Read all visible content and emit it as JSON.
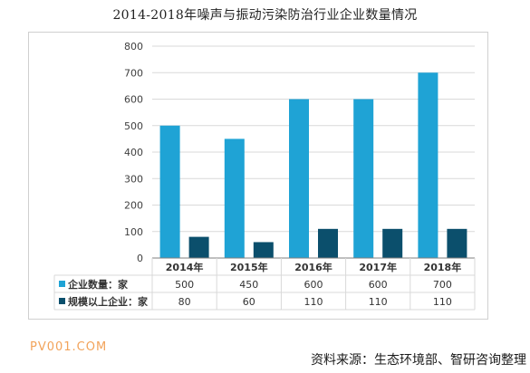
{
  "title": "2014-2018年噪声与振动污染防治行业企业数量情况",
  "watermark": "PV001.COM",
  "source": "资料来源：生态环境部、智研咨询整理",
  "colors": {
    "series1": "#1fa3d5",
    "series2": "#0b4f6c",
    "grid": "#d9d9d9",
    "axis": "#7f7f7f"
  },
  "chart_data": {
    "type": "bar",
    "categories": [
      "2014年",
      "2015年",
      "2016年",
      "2017年",
      "2018年"
    ],
    "series": [
      {
        "name": "企业数量：家",
        "values": [
          500,
          450,
          600,
          600,
          700
        ]
      },
      {
        "name": "规模以上企业：家",
        "values": [
          80,
          60,
          110,
          110,
          110
        ]
      }
    ],
    "yticks": [
      0,
      100,
      200,
      300,
      400,
      500,
      600,
      700,
      800
    ],
    "ylim": [
      0,
      800
    ],
    "grid": true,
    "table": [
      [
        "500",
        "450",
        "600",
        "600",
        "700"
      ],
      [
        "80",
        "60",
        "110",
        "110",
        "110"
      ]
    ]
  }
}
